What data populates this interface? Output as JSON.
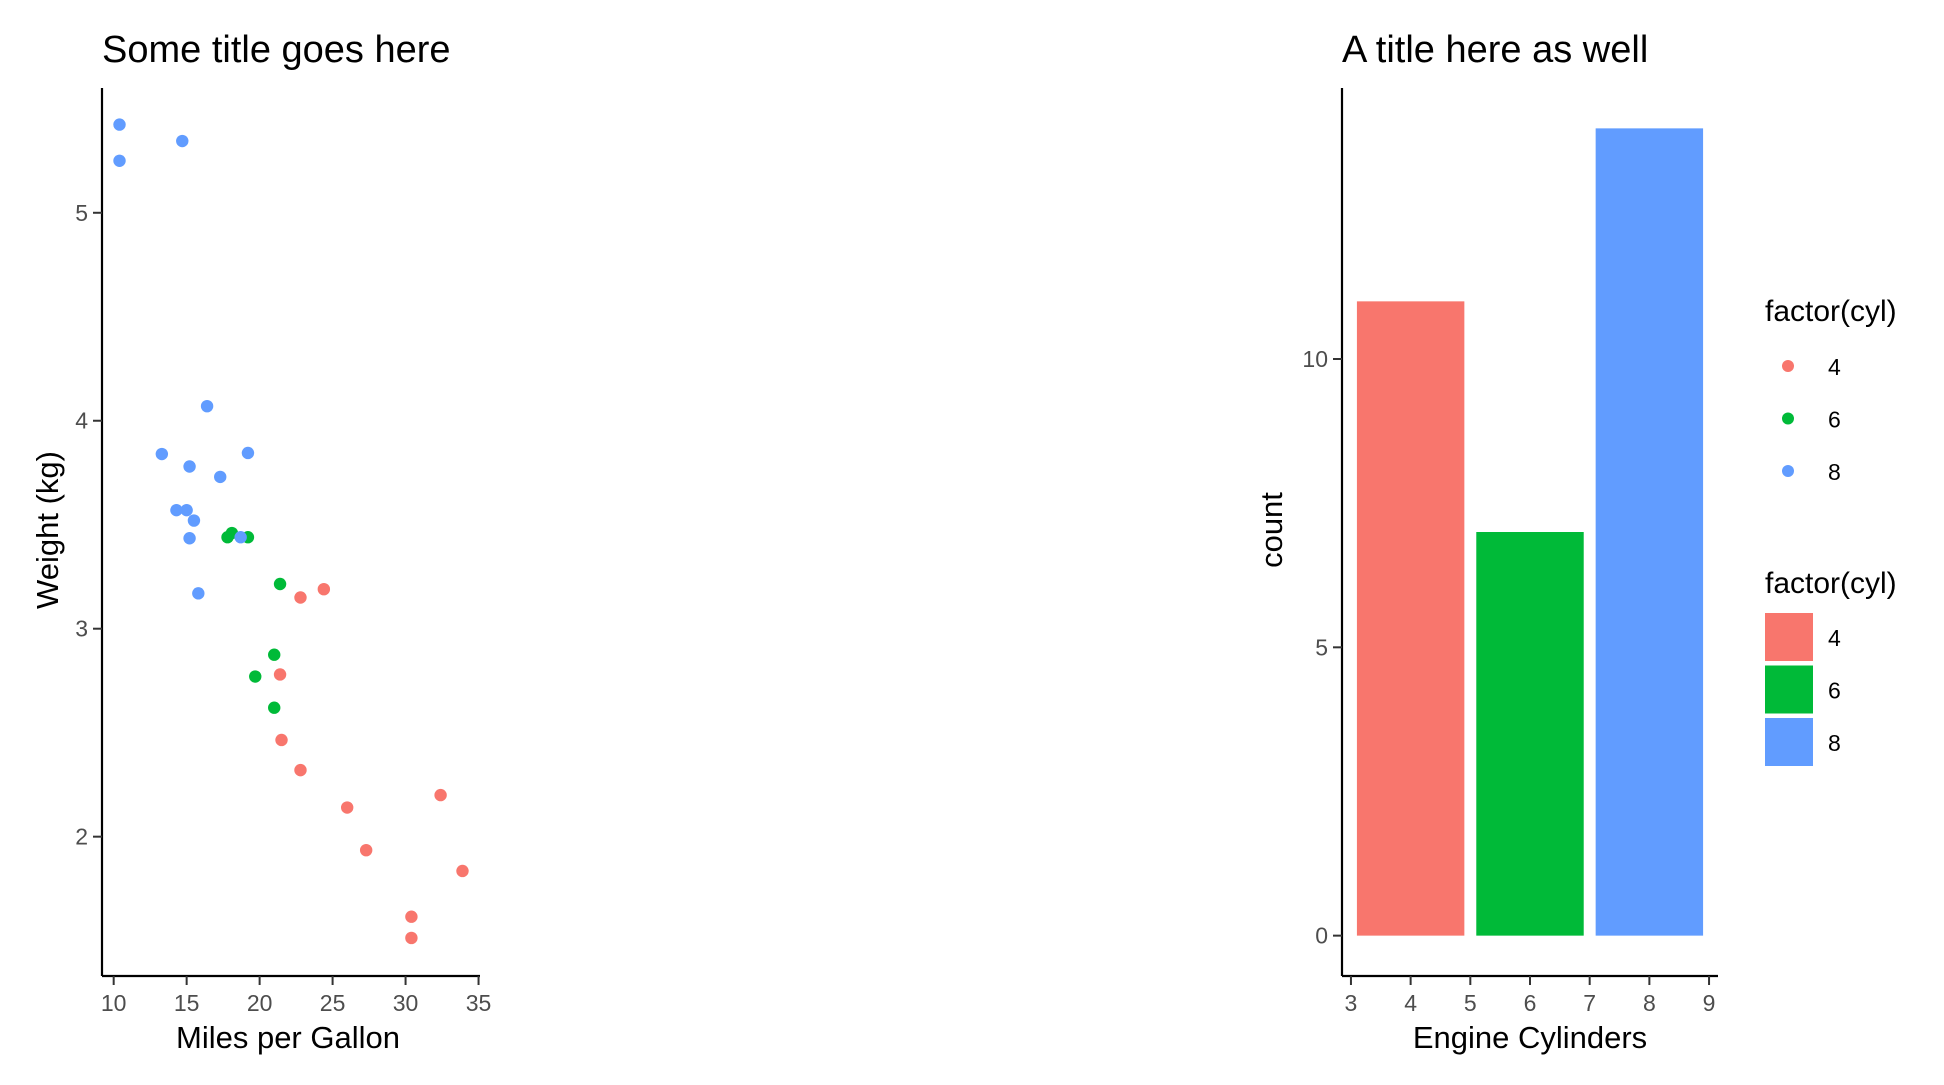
{
  "chart_data": [
    {
      "type": "scatter",
      "title": "Some title goes here",
      "xlabel": "Miles per Gallon",
      "ylabel": "Weight (kg)",
      "xlim": [
        9.2,
        35.1
      ],
      "ylim": [
        1.33,
        5.6
      ],
      "xticks": [
        10,
        15,
        20,
        25,
        30,
        35
      ],
      "yticks": [
        2,
        3,
        4,
        5
      ],
      "grid": false,
      "series": [
        {
          "name": "4",
          "color": "#F8766D",
          "points": [
            [
              22.8,
              2.32
            ],
            [
              24.4,
              3.19
            ],
            [
              22.8,
              3.15
            ],
            [
              32.4,
              2.2
            ],
            [
              30.4,
              1.615
            ],
            [
              33.9,
              1.835
            ],
            [
              21.5,
              2.465
            ],
            [
              27.3,
              1.935
            ],
            [
              26.0,
              2.14
            ],
            [
              30.4,
              1.513
            ],
            [
              21.4,
              2.78
            ]
          ]
        },
        {
          "name": "6",
          "color": "#00BA38",
          "points": [
            [
              21.0,
              2.62
            ],
            [
              21.0,
              2.875
            ],
            [
              21.4,
              3.215
            ],
            [
              18.1,
              3.46
            ],
            [
              19.2,
              3.44
            ],
            [
              17.8,
              3.44
            ],
            [
              19.7,
              2.77
            ]
          ]
        },
        {
          "name": "8",
          "color": "#619CFF",
          "points": [
            [
              18.7,
              3.44
            ],
            [
              14.3,
              3.57
            ],
            [
              16.4,
              4.07
            ],
            [
              17.3,
              3.73
            ],
            [
              15.2,
              3.78
            ],
            [
              10.4,
              5.25
            ],
            [
              10.4,
              5.424
            ],
            [
              14.7,
              5.345
            ],
            [
              15.5,
              3.52
            ],
            [
              15.2,
              3.435
            ],
            [
              13.3,
              3.84
            ],
            [
              19.2,
              3.845
            ],
            [
              15.8,
              3.17
            ],
            [
              15.0,
              3.57
            ]
          ]
        }
      ]
    },
    {
      "type": "bar",
      "title": "A title here as well",
      "xlabel": "Engine Cylinders",
      "ylabel": "count",
      "xlim": [
        2.85,
        9.15
      ],
      "ylim": [
        -0.7,
        14.7
      ],
      "xticks": [
        3,
        4,
        5,
        6,
        7,
        8,
        9
      ],
      "yticks": [
        0,
        5,
        10
      ],
      "grid": false,
      "bars": [
        {
          "name": "4",
          "x": 4,
          "value": 11,
          "color": "#F8766D"
        },
        {
          "name": "6",
          "x": 6,
          "value": 7,
          "color": "#00BA38"
        },
        {
          "name": "8",
          "x": 8,
          "value": 14,
          "color": "#619CFF"
        }
      ],
      "bar_width": 1.8
    }
  ],
  "legends": [
    {
      "title": "factor(cyl)",
      "kind": "point",
      "entries": [
        {
          "label": "4",
          "color": "#F8766D"
        },
        {
          "label": "6",
          "color": "#00BA38"
        },
        {
          "label": "8",
          "color": "#619CFF"
        }
      ]
    },
    {
      "title": "factor(cyl)",
      "kind": "fill",
      "entries": [
        {
          "label": "4",
          "color": "#F8766D"
        },
        {
          "label": "6",
          "color": "#00BA38"
        },
        {
          "label": "8",
          "color": "#619CFF"
        }
      ]
    }
  ]
}
